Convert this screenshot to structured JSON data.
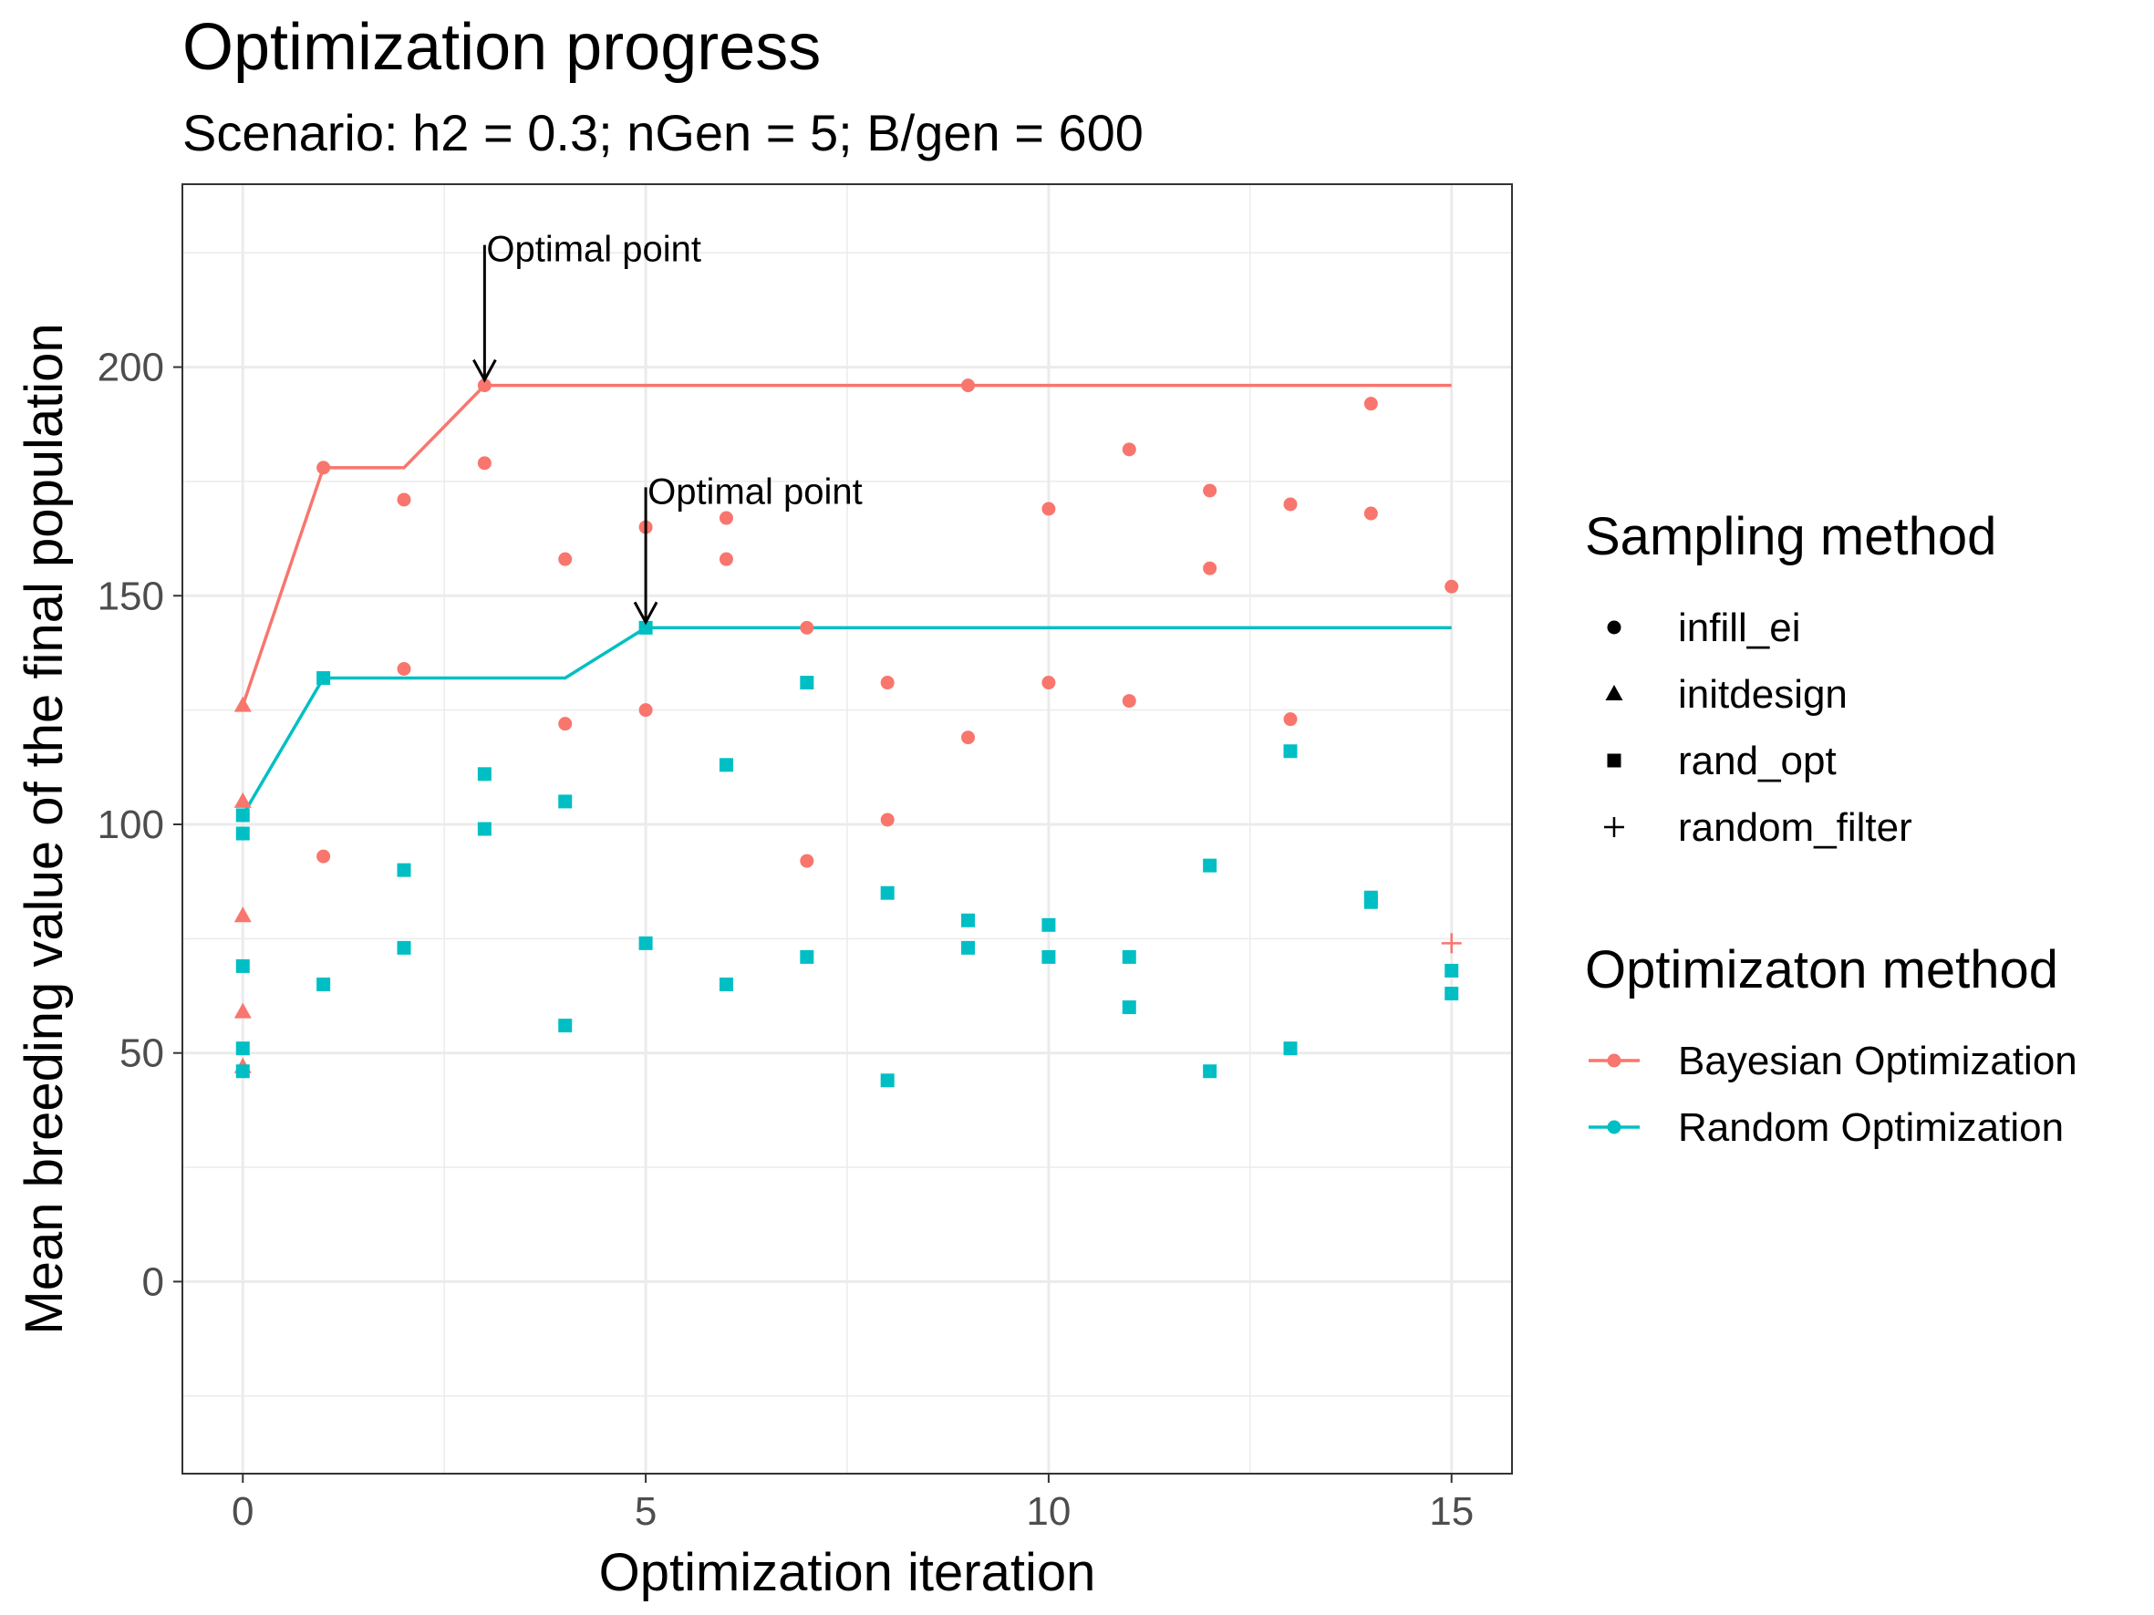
{
  "chart_data": {
    "type": "scatter",
    "title": "Optimization progress",
    "subtitle": "Scenario: h2 = 0.3; nGen = 5; B/gen = 600",
    "xlabel": "Optimization iteration",
    "ylabel": "Mean breeding value of the final population",
    "xlim": [
      -0.75,
      15.75
    ],
    "ylim": [
      -42,
      240
    ],
    "x_ticks": [
      0,
      5,
      10,
      15
    ],
    "y_ticks": [
      0,
      50,
      100,
      150,
      200
    ],
    "grid": true,
    "legend_position": "right",
    "colors": {
      "Bayesian Optimization": "#F8766D",
      "Random Optimization": "#00BFC4"
    },
    "legends": [
      {
        "title": "Sampling method",
        "items": [
          {
            "label": "infill_ei",
            "shape": "circle"
          },
          {
            "label": "initdesign",
            "shape": "triangle"
          },
          {
            "label": "rand_opt",
            "shape": "square"
          },
          {
            "label": "random_filter",
            "shape": "plus"
          }
        ]
      },
      {
        "title": "Optimizaton method",
        "items": [
          {
            "label": "Bayesian Optimization",
            "color": "#F8766D"
          },
          {
            "label": "Random Optimization",
            "color": "#00BFC4"
          }
        ]
      }
    ],
    "lines": [
      {
        "name": "Bayesian Optimization",
        "x": [
          0,
          1,
          2,
          3,
          15
        ],
        "y": [
          126,
          178,
          178,
          196,
          196
        ]
      },
      {
        "name": "Random Optimization",
        "x": [
          0,
          1,
          4,
          5,
          15
        ],
        "y": [
          102,
          132,
          132,
          143,
          143
        ]
      }
    ],
    "series": [
      {
        "name": "Bayesian Optimization",
        "points": [
          {
            "x": 0,
            "y": 126,
            "shape": "triangle"
          },
          {
            "x": 0,
            "y": 105,
            "shape": "triangle"
          },
          {
            "x": 0,
            "y": 80,
            "shape": "triangle"
          },
          {
            "x": 0,
            "y": 59,
            "shape": "triangle"
          },
          {
            "x": 0,
            "y": 47,
            "shape": "triangle"
          },
          {
            "x": 1,
            "y": 178,
            "shape": "circle"
          },
          {
            "x": 1,
            "y": 93,
            "shape": "circle"
          },
          {
            "x": 2,
            "y": 171,
            "shape": "circle"
          },
          {
            "x": 2,
            "y": 134,
            "shape": "circle"
          },
          {
            "x": 3,
            "y": 196,
            "shape": "circle"
          },
          {
            "x": 3,
            "y": 179,
            "shape": "circle"
          },
          {
            "x": 4,
            "y": 158,
            "shape": "circle"
          },
          {
            "x": 4,
            "y": 122,
            "shape": "circle"
          },
          {
            "x": 5,
            "y": 165,
            "shape": "circle"
          },
          {
            "x": 5,
            "y": 125,
            "shape": "circle"
          },
          {
            "x": 6,
            "y": 167,
            "shape": "circle"
          },
          {
            "x": 6,
            "y": 158,
            "shape": "circle"
          },
          {
            "x": 7,
            "y": 143,
            "shape": "circle"
          },
          {
            "x": 7,
            "y": 92,
            "shape": "circle"
          },
          {
            "x": 8,
            "y": 131,
            "shape": "circle"
          },
          {
            "x": 8,
            "y": 101,
            "shape": "circle"
          },
          {
            "x": 9,
            "y": 196,
            "shape": "circle"
          },
          {
            "x": 9,
            "y": 119,
            "shape": "circle"
          },
          {
            "x": 10,
            "y": 169,
            "shape": "circle"
          },
          {
            "x": 10,
            "y": 131,
            "shape": "circle"
          },
          {
            "x": 11,
            "y": 182,
            "shape": "circle"
          },
          {
            "x": 11,
            "y": 127,
            "shape": "circle"
          },
          {
            "x": 12,
            "y": 173,
            "shape": "circle"
          },
          {
            "x": 12,
            "y": 156,
            "shape": "circle"
          },
          {
            "x": 13,
            "y": 170,
            "shape": "circle"
          },
          {
            "x": 13,
            "y": 123,
            "shape": "circle"
          },
          {
            "x": 14,
            "y": 192,
            "shape": "circle"
          },
          {
            "x": 14,
            "y": 168,
            "shape": "circle"
          },
          {
            "x": 15,
            "y": 152,
            "shape": "circle"
          },
          {
            "x": 15,
            "y": 74,
            "shape": "plus"
          }
        ]
      },
      {
        "name": "Random Optimization",
        "points": [
          {
            "x": 0,
            "y": 102,
            "shape": "square"
          },
          {
            "x": 0,
            "y": 98,
            "shape": "square"
          },
          {
            "x": 0,
            "y": 69,
            "shape": "square"
          },
          {
            "x": 0,
            "y": 51,
            "shape": "square"
          },
          {
            "x": 0,
            "y": 46,
            "shape": "square"
          },
          {
            "x": 1,
            "y": 132,
            "shape": "square"
          },
          {
            "x": 1,
            "y": 65,
            "shape": "square"
          },
          {
            "x": 2,
            "y": 90,
            "shape": "square"
          },
          {
            "x": 2,
            "y": 73,
            "shape": "square"
          },
          {
            "x": 3,
            "y": 111,
            "shape": "square"
          },
          {
            "x": 3,
            "y": 99,
            "shape": "square"
          },
          {
            "x": 4,
            "y": 105,
            "shape": "square"
          },
          {
            "x": 4,
            "y": 56,
            "shape": "square"
          },
          {
            "x": 5,
            "y": 143,
            "shape": "square"
          },
          {
            "x": 5,
            "y": 74,
            "shape": "square"
          },
          {
            "x": 6,
            "y": 113,
            "shape": "square"
          },
          {
            "x": 6,
            "y": 65,
            "shape": "square"
          },
          {
            "x": 7,
            "y": 131,
            "shape": "square"
          },
          {
            "x": 7,
            "y": 71,
            "shape": "square"
          },
          {
            "x": 8,
            "y": 85,
            "shape": "square"
          },
          {
            "x": 8,
            "y": 44,
            "shape": "square"
          },
          {
            "x": 9,
            "y": 79,
            "shape": "square"
          },
          {
            "x": 9,
            "y": 73,
            "shape": "square"
          },
          {
            "x": 10,
            "y": 78,
            "shape": "square"
          },
          {
            "x": 10,
            "y": 71,
            "shape": "square"
          },
          {
            "x": 11,
            "y": 71,
            "shape": "square"
          },
          {
            "x": 11,
            "y": 60,
            "shape": "square"
          },
          {
            "x": 12,
            "y": 91,
            "shape": "square"
          },
          {
            "x": 12,
            "y": 46,
            "shape": "square"
          },
          {
            "x": 13,
            "y": 116,
            "shape": "square"
          },
          {
            "x": 13,
            "y": 51,
            "shape": "square"
          },
          {
            "x": 14,
            "y": 84,
            "shape": "square"
          },
          {
            "x": 14,
            "y": 83,
            "shape": "square"
          },
          {
            "x": 15,
            "y": 68,
            "shape": "square"
          },
          {
            "x": 15,
            "y": 63,
            "shape": "square"
          }
        ]
      }
    ],
    "annotations": [
      {
        "text": "Optimal point",
        "x": 3,
        "y": 196
      },
      {
        "text": "Optimal point",
        "x": 5,
        "y": 143
      }
    ]
  }
}
